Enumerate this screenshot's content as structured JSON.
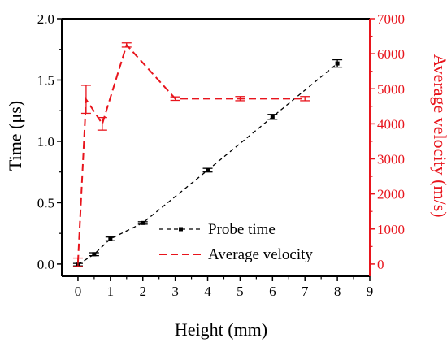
{
  "chart_data": {
    "type": "line",
    "title": "",
    "xlabel": "Height (mm)",
    "ylabel": "Time (μs)",
    "y2label": "Average velocity (m/s)",
    "xlim": [
      -0.5,
      9
    ],
    "ylim": [
      -0.1,
      2.0
    ],
    "y2lim": [
      -350,
      7000
    ],
    "xticks": [
      0,
      1,
      2,
      3,
      4,
      5,
      6,
      7,
      8,
      9
    ],
    "yticks": [
      0.0,
      0.5,
      1.0,
      1.5,
      2.0
    ],
    "y2ticks": [
      0,
      1000,
      2000,
      3000,
      4000,
      5000,
      6000,
      7000
    ],
    "xtick_labels": [
      "0",
      "1",
      "2",
      "3",
      "4",
      "5",
      "6",
      "7",
      "8",
      "9"
    ],
    "ytick_labels": [
      "0.0",
      "0.5",
      "1.0",
      "1.5",
      "2.0"
    ],
    "y2tick_labels": [
      "0",
      "1000",
      "2000",
      "3000",
      "4000",
      "5000",
      "6000",
      "7000"
    ],
    "legend_position": "lower-right",
    "grid": false,
    "series": [
      {
        "name": "Probe time",
        "axis": "left",
        "color": "#000000",
        "style": "dash-dot-marker",
        "x": [
          0,
          0.5,
          1,
          2,
          4,
          6,
          8
        ],
        "y": [
          -0.005,
          0.08,
          0.205,
          0.335,
          0.765,
          1.2,
          1.635
        ],
        "err": [
          0.01,
          0.012,
          0.015,
          0.01,
          0.015,
          0.02,
          0.03
        ]
      },
      {
        "name": "Average velocity",
        "axis": "right",
        "color": "#e8141c",
        "style": "dashed",
        "x": [
          0,
          0.25,
          0.75,
          1.5,
          3,
          5,
          7
        ],
        "y": [
          50,
          4700,
          4000,
          6250,
          4720,
          4720,
          4720
        ],
        "err": [
          120,
          400,
          180,
          60,
          50,
          60,
          60
        ]
      }
    ]
  }
}
